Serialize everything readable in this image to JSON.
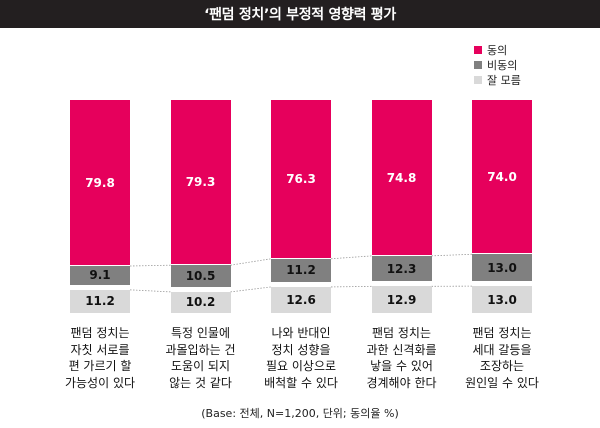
{
  "colors": {
    "title_bar": "#231F20",
    "title_text": "#FFFFFF"
  },
  "chart_data": {
    "type": "bar",
    "stacked": true,
    "title": "‘팬덤 정치’의 부정적 영향력 평가",
    "note": "(Base: 전체, N=1,200, 단위; 동의율 %)",
    "categories": [
      "팬덤 정치는\n자칫 서로를\n편 가르기 할\n가능성이 있다",
      "특정 인물에\n과몰입하는 건\n도움이 되지\n않는 것 같다",
      "나와 반대인\n정치 성향을\n필요 이상으로\n배척할 수 있다",
      "팬덤 정치는\n과한 신격화를\n낳을 수 있어\n경계해야 한다",
      "팬덤 정치는\n세대 갈등을\n조장하는\n원인일 수 있다"
    ],
    "series": [
      {
        "name": "동의",
        "color": "#E6005C",
        "label_color": "#FFFFFF",
        "values": [
          79.8,
          79.3,
          76.3,
          74.8,
          74.0
        ]
      },
      {
        "name": "비동의",
        "color": "#808080",
        "label_color": "#111111",
        "values": [
          9.1,
          10.5,
          11.2,
          12.3,
          13.0
        ]
      },
      {
        "name": "잘 모름",
        "color": "#D9D9D9",
        "label_color": "#111111",
        "values": [
          11.2,
          10.2,
          12.6,
          12.9,
          13.0
        ]
      }
    ],
    "ylim": [
      0,
      100
    ],
    "grid": false,
    "legend_position": "top-right",
    "data_labels": true
  }
}
